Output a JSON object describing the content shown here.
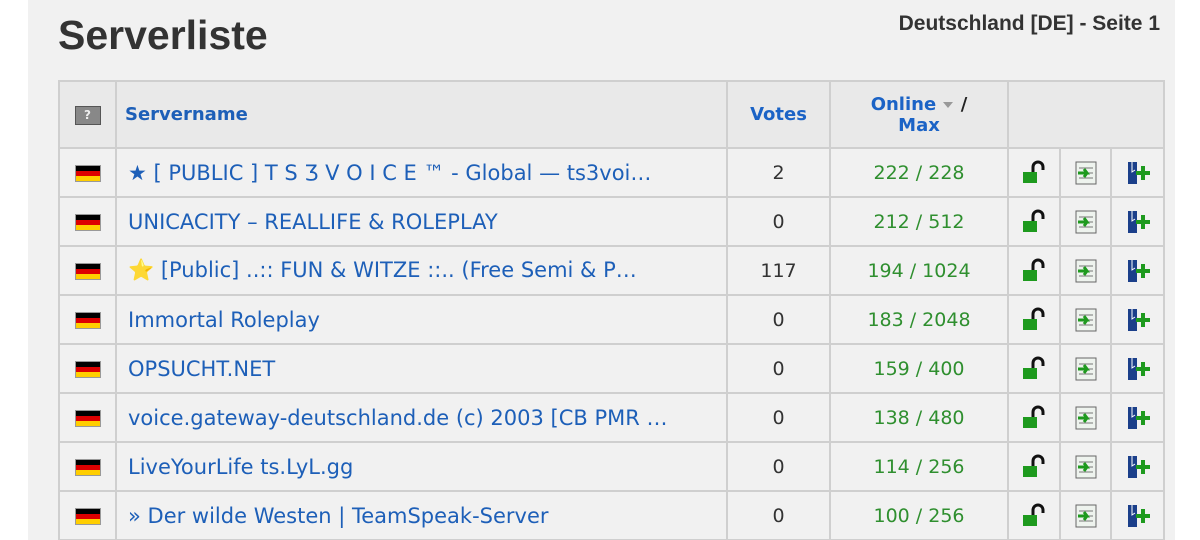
{
  "header": {
    "title": "Serverliste",
    "subtitle": "Deutschland [DE] - Seite 1"
  },
  "table": {
    "columns": {
      "servername": "Servername",
      "votes": "Votes",
      "online": "Online",
      "separator": "/",
      "max": "Max"
    },
    "rows": [
      {
        "name": "★ [ PUBLIC ] T S Ʒ V O I C E ™ - Global — ts3voi…",
        "votes": "2",
        "online": "222 / 228"
      },
      {
        "name": "UNICACITY – REALLIFE & ROLEPLAY",
        "votes": "0",
        "online": "212 / 512"
      },
      {
        "name": "⭐ [Public] ..:: FUN & WITZE ::.. (Free Semi & P…",
        "votes": "117",
        "online": "194 / 1024"
      },
      {
        "name": "Immortal Roleplay",
        "votes": "0",
        "online": "183 / 2048"
      },
      {
        "name": "OPSUCHT.NET",
        "votes": "0",
        "online": "159 / 400"
      },
      {
        "name": "voice.gateway-deutschland.de (c) 2003 [CB PMR …",
        "votes": "0",
        "online": "138 / 480"
      },
      {
        "name": "LiveYourLife ts.LyL.gg",
        "votes": "0",
        "online": "114 / 256"
      },
      {
        "name": "» Der wilde Westen | TeamSpeak-Server",
        "votes": "0",
        "online": "100 / 256"
      }
    ]
  }
}
